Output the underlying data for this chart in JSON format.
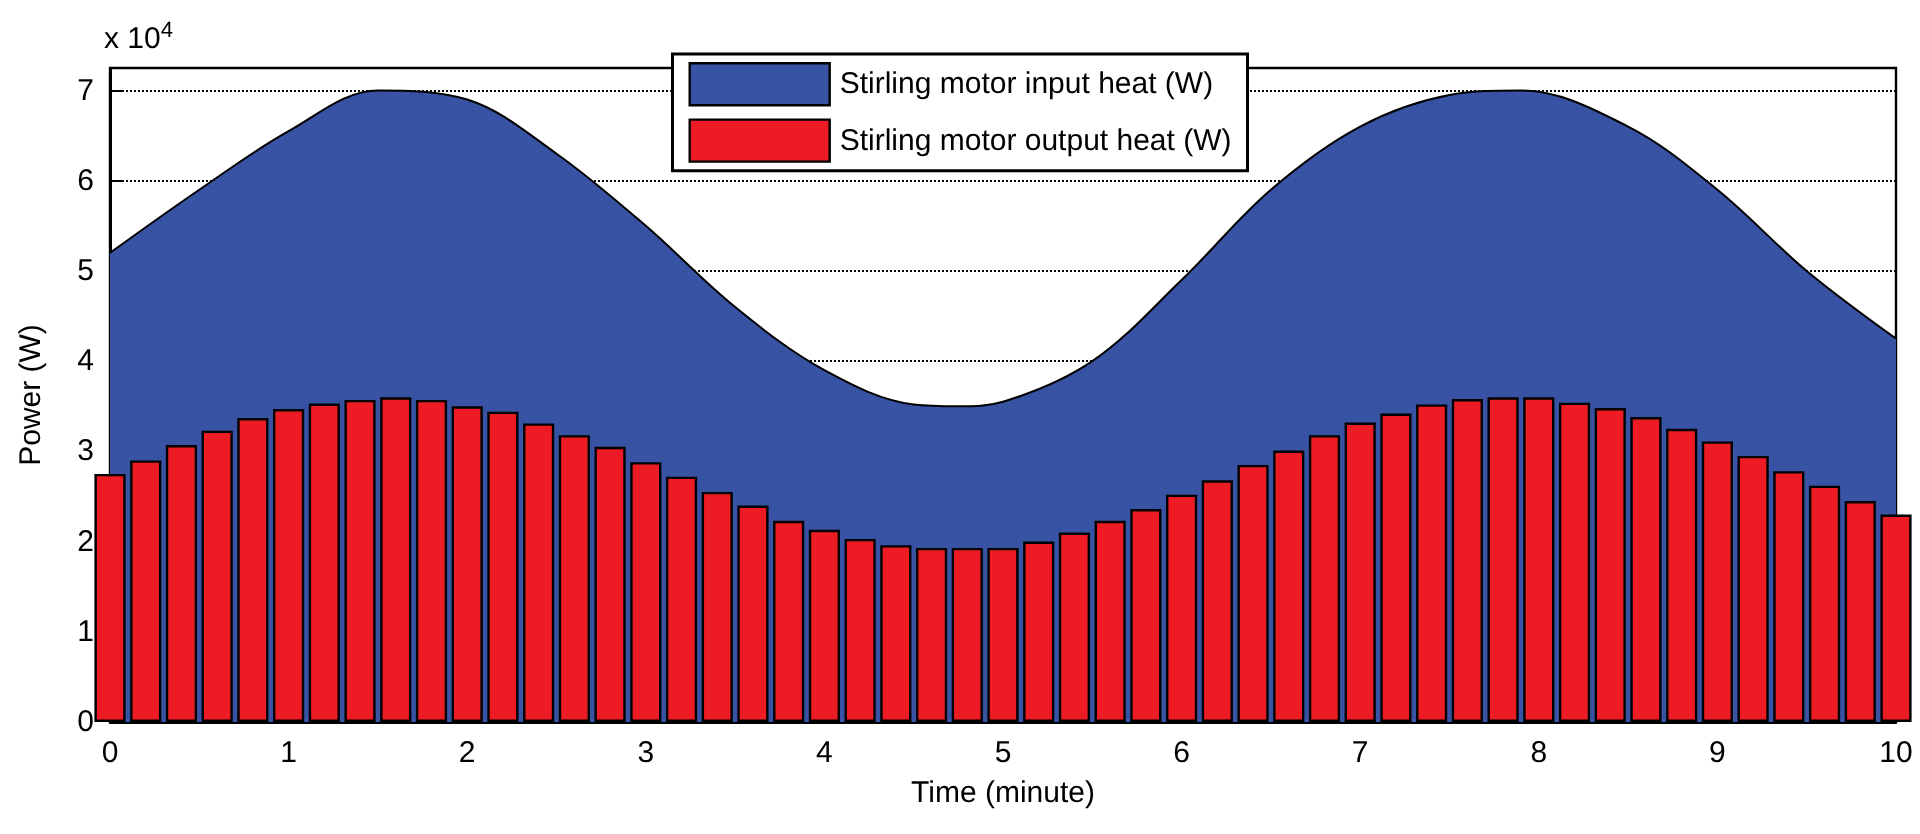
{
  "chart_data": {
    "type": "bar",
    "xlabel": "Time (minute)",
    "ylabel": "Power (W)",
    "annotations": [
      "x 10$^{4}$"
    ],
    "series": [
      {
        "name": "Stirling motor input heat (W)",
        "type": "area",
        "color": "#3953a4",
        "x": [
          0,
          0.5,
          1,
          1.5,
          2,
          2.5,
          3,
          3.5,
          4,
          4.5,
          4.75,
          5,
          5.5,
          6,
          6.5,
          7,
          7.5,
          7.9,
          8.5,
          9,
          9.5,
          10
        ],
        "values": [
          5.2,
          5.9,
          6.55,
          7.0,
          6.9,
          6.3,
          5.5,
          4.6,
          3.9,
          3.52,
          3.5,
          3.55,
          4.0,
          4.9,
          5.9,
          6.6,
          6.95,
          7.0,
          6.6,
          5.9,
          5.0,
          4.25
        ]
      },
      {
        "name": "Stirling motor output heat (W)",
        "color": "#ed1c24",
        "x": [
          0,
          0.2,
          0.4,
          0.6,
          0.8,
          1,
          1.2,
          1.4,
          1.6,
          1.8,
          2,
          2.2,
          2.4,
          2.6,
          2.8,
          3,
          3.2,
          3.4,
          3.6,
          3.8,
          4,
          4.2,
          4.4,
          4.6,
          4.8,
          5,
          5.2,
          5.4,
          5.6,
          5.8,
          6,
          6.2,
          6.4,
          6.6,
          6.8,
          7,
          7.2,
          7.4,
          7.6,
          7.8,
          8,
          8.2,
          8.4,
          8.6,
          8.8,
          9,
          9.2,
          9.4,
          9.6,
          9.8,
          10
        ],
        "values": [
          2.75,
          2.9,
          3.07,
          3.23,
          3.37,
          3.47,
          3.53,
          3.57,
          3.6,
          3.57,
          3.5,
          3.44,
          3.31,
          3.18,
          3.05,
          2.88,
          2.72,
          2.55,
          2.4,
          2.23,
          2.13,
          2.03,
          1.96,
          1.93,
          1.93,
          1.93,
          2.0,
          2.1,
          2.23,
          2.36,
          2.52,
          2.68,
          2.85,
          3.01,
          3.18,
          3.32,
          3.42,
          3.52,
          3.58,
          3.6,
          3.6,
          3.54,
          3.48,
          3.38,
          3.25,
          3.11,
          2.95,
          2.78,
          2.62,
          2.45,
          2.3
        ]
      }
    ],
    "xlim": [
      0,
      10
    ],
    "xticks": [
      0,
      1,
      2,
      3,
      4,
      5,
      6,
      7,
      8,
      9,
      10
    ],
    "ylim": [
      0,
      7.25
    ],
    "yticks": [
      0,
      1,
      2,
      3,
      4,
      5,
      6,
      7
    ],
    "grid": "y",
    "legend": "top"
  }
}
